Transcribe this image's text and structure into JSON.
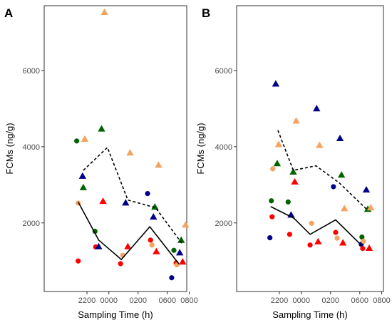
{
  "chart_data": [
    {
      "type": "scatter",
      "panel_label": "A",
      "xlabel": "Sampling Time (h)",
      "ylabel": "FCMs (ng/g)",
      "x_categories": [
        "2200",
        "0000",
        "0200",
        "0600",
        "0800"
      ],
      "yticks": [
        2000,
        4000,
        6000
      ],
      "ylim": [
        200,
        7700
      ],
      "grid": false,
      "colors": {
        "red": "#ff0000",
        "green": "#006400",
        "blue": "#00008b",
        "orange": "#f4a460"
      },
      "points": [
        {
          "x": 2.3,
          "y": 4150,
          "shape": "circle",
          "color": "green"
        },
        {
          "x": 2.4,
          "y": 2520,
          "shape": "circle",
          "color": "orange"
        },
        {
          "x": 2.4,
          "y": 1000,
          "shape": "circle",
          "color": "red"
        },
        {
          "x": 2.7,
          "y": 3230,
          "shape": "triangle",
          "color": "blue"
        },
        {
          "x": 2.75,
          "y": 2930,
          "shape": "triangle",
          "color": "green"
        },
        {
          "x": 2.85,
          "y": 4200,
          "shape": "triangle",
          "color": "orange"
        },
        {
          "x": 3.55,
          "y": 1780,
          "shape": "circle",
          "color": "green"
        },
        {
          "x": 3.6,
          "y": 1370,
          "shape": "circle",
          "color": "red"
        },
        {
          "x": 3.8,
          "y": 1380,
          "shape": "triangle",
          "color": "blue"
        },
        {
          "x": 4.0,
          "y": 4470,
          "shape": "triangle",
          "color": "green"
        },
        {
          "x": 4.1,
          "y": 2570,
          "shape": "triangle",
          "color": "red"
        },
        {
          "x": 4.2,
          "y": 7530,
          "shape": "triangle",
          "color": "orange"
        },
        {
          "x": 5.3,
          "y": 930,
          "shape": "circle",
          "color": "red"
        },
        {
          "x": 5.45,
          "y": 1150,
          "shape": "circle",
          "color": "orange"
        },
        {
          "x": 5.65,
          "y": 2530,
          "shape": "triangle",
          "color": "blue"
        },
        {
          "x": 5.8,
          "y": 1380,
          "shape": "triangle",
          "color": "red"
        },
        {
          "x": 5.95,
          "y": 3840,
          "shape": "triangle",
          "color": "orange"
        },
        {
          "x": 7.15,
          "y": 2770,
          "shape": "circle",
          "color": "blue"
        },
        {
          "x": 7.35,
          "y": 1550,
          "shape": "circle",
          "color": "red"
        },
        {
          "x": 7.45,
          "y": 1420,
          "shape": "circle",
          "color": "orange"
        },
        {
          "x": 7.55,
          "y": 2160,
          "shape": "triangle",
          "color": "blue"
        },
        {
          "x": 7.65,
          "y": 2420,
          "shape": "triangle",
          "color": "green"
        },
        {
          "x": 7.75,
          "y": 1250,
          "shape": "triangle",
          "color": "red"
        },
        {
          "x": 7.9,
          "y": 3520,
          "shape": "triangle",
          "color": "orange"
        },
        {
          "x": 8.8,
          "y": 560,
          "shape": "circle",
          "color": "blue"
        },
        {
          "x": 8.95,
          "y": 1280,
          "shape": "circle",
          "color": "green"
        },
        {
          "x": 9.1,
          "y": 950,
          "shape": "circle",
          "color": "red"
        },
        {
          "x": 9.15,
          "y": 900,
          "shape": "circle",
          "color": "orange"
        },
        {
          "x": 9.35,
          "y": 1220,
          "shape": "triangle",
          "color": "blue"
        },
        {
          "x": 9.45,
          "y": 1550,
          "shape": "triangle",
          "color": "green"
        },
        {
          "x": 9.55,
          "y": 980,
          "shape": "triangle",
          "color": "red"
        },
        {
          "x": 9.75,
          "y": 1950,
          "shape": "triangle",
          "color": "orange"
        }
      ],
      "lines": [
        {
          "style": "solid",
          "x": [
            2.4,
            3.8,
            5.35,
            7.3,
            9.3
          ],
          "y": [
            2550,
            1550,
            1040,
            1900,
            920
          ]
        },
        {
          "style": "dashed",
          "x": [
            2.75,
            4.4,
            5.8,
            7.7,
            9.5
          ],
          "y": [
            3380,
            3980,
            2600,
            2400,
            1460
          ]
        }
      ]
    },
    {
      "type": "scatter",
      "panel_label": "B",
      "xlabel": "Sampling Time (h)",
      "ylabel": "FCMs (ng/g)",
      "x_categories": [
        "2200",
        "0000",
        "0200",
        "0600",
        "0800"
      ],
      "yticks": [
        2000,
        4000,
        6000
      ],
      "ylim": [
        200,
        7700
      ],
      "grid": false,
      "colors": {
        "red": "#ff0000",
        "green": "#006400",
        "blue": "#00008b",
        "orange": "#f4a460"
      },
      "points": [
        {
          "x": 2.35,
          "y": 1610,
          "shape": "circle",
          "color": "blue"
        },
        {
          "x": 2.45,
          "y": 2580,
          "shape": "circle",
          "color": "green"
        },
        {
          "x": 2.5,
          "y": 2160,
          "shape": "circle",
          "color": "red"
        },
        {
          "x": 2.55,
          "y": 3420,
          "shape": "circle",
          "color": "orange"
        },
        {
          "x": 2.75,
          "y": 5650,
          "shape": "triangle",
          "color": "blue"
        },
        {
          "x": 2.85,
          "y": 3560,
          "shape": "triangle",
          "color": "green"
        },
        {
          "x": 2.95,
          "y": 4060,
          "shape": "triangle",
          "color": "orange"
        },
        {
          "x": 3.6,
          "y": 2550,
          "shape": "circle",
          "color": "green"
        },
        {
          "x": 3.7,
          "y": 1700,
          "shape": "circle",
          "color": "red"
        },
        {
          "x": 3.8,
          "y": 2210,
          "shape": "triangle",
          "color": "blue"
        },
        {
          "x": 3.95,
          "y": 3340,
          "shape": "triangle",
          "color": "green"
        },
        {
          "x": 4.05,
          "y": 3080,
          "shape": "triangle",
          "color": "red"
        },
        {
          "x": 4.15,
          "y": 4680,
          "shape": "triangle",
          "color": "orange"
        },
        {
          "x": 5.1,
          "y": 1420,
          "shape": "circle",
          "color": "red"
        },
        {
          "x": 5.2,
          "y": 1990,
          "shape": "circle",
          "color": "orange"
        },
        {
          "x": 5.55,
          "y": 5000,
          "shape": "triangle",
          "color": "blue"
        },
        {
          "x": 5.65,
          "y": 1510,
          "shape": "triangle",
          "color": "red"
        },
        {
          "x": 5.75,
          "y": 4040,
          "shape": "triangle",
          "color": "orange"
        },
        {
          "x": 6.7,
          "y": 2950,
          "shape": "circle",
          "color": "blue"
        },
        {
          "x": 6.85,
          "y": 1750,
          "shape": "circle",
          "color": "red"
        },
        {
          "x": 6.95,
          "y": 1600,
          "shape": "circle",
          "color": "orange"
        },
        {
          "x": 7.15,
          "y": 4220,
          "shape": "triangle",
          "color": "blue"
        },
        {
          "x": 7.25,
          "y": 3260,
          "shape": "triangle",
          "color": "green"
        },
        {
          "x": 7.35,
          "y": 1480,
          "shape": "triangle",
          "color": "red"
        },
        {
          "x": 7.45,
          "y": 2380,
          "shape": "triangle",
          "color": "orange"
        },
        {
          "x": 8.6,
          "y": 1440,
          "shape": "circle",
          "color": "blue"
        },
        {
          "x": 8.65,
          "y": 1630,
          "shape": "circle",
          "color": "green"
        },
        {
          "x": 8.7,
          "y": 1330,
          "shape": "circle",
          "color": "red"
        },
        {
          "x": 8.75,
          "y": 1520,
          "shape": "circle",
          "color": "orange"
        },
        {
          "x": 8.95,
          "y": 2870,
          "shape": "triangle",
          "color": "blue"
        },
        {
          "x": 9.05,
          "y": 2360,
          "shape": "triangle",
          "color": "green"
        },
        {
          "x": 9.15,
          "y": 1340,
          "shape": "triangle",
          "color": "red"
        },
        {
          "x": 9.25,
          "y": 2400,
          "shape": "triangle",
          "color": "orange"
        }
      ],
      "lines": [
        {
          "style": "solid",
          "x": [
            2.4,
            4.0,
            5.1,
            6.85,
            8.65
          ],
          "y": [
            2430,
            2120,
            1700,
            2080,
            1400
          ]
        },
        {
          "style": "dashed",
          "x": [
            2.9,
            3.95,
            5.5,
            7.1,
            9.05
          ],
          "y": [
            4430,
            3380,
            3500,
            3050,
            2330
          ]
        }
      ]
    }
  ]
}
